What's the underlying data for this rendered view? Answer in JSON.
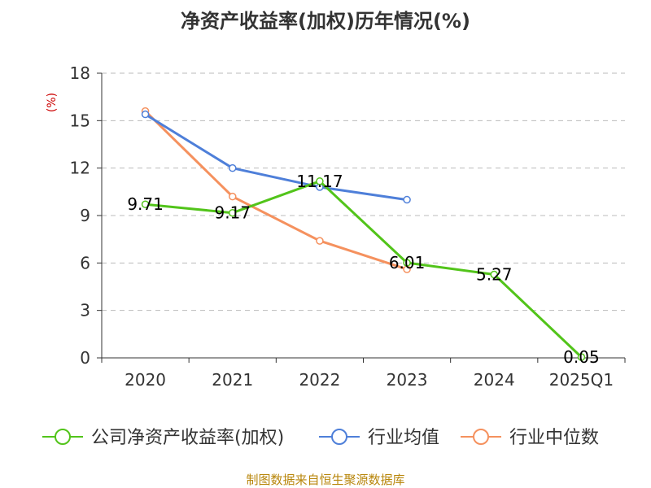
{
  "chart_data": {
    "type": "line",
    "title": "净资产收益率(加权)历年情况(%)",
    "ylabel": "(%)",
    "xlabel": "",
    "categories": [
      "2020",
      "2021",
      "2022",
      "2023",
      "2024",
      "2025Q1"
    ],
    "ylim": [
      0,
      18
    ],
    "yticks": [
      0,
      3,
      6,
      9,
      12,
      15,
      18
    ],
    "grid": true,
    "legend_position": "bottom",
    "series": [
      {
        "name": "公司净资产收益率(加权)",
        "color": "#52c41a",
        "values": [
          9.71,
          9.17,
          11.17,
          6.01,
          5.27,
          0.05
        ],
        "data_labels": [
          "9.71",
          "9.17",
          "11.17",
          "6.01",
          "5.27",
          "0.05"
        ]
      },
      {
        "name": "行业均值",
        "color": "#4e7fd9",
        "values": [
          15.4,
          12.0,
          10.8,
          10.0,
          null,
          null
        ]
      },
      {
        "name": "行业中位数",
        "color": "#f5915e",
        "values": [
          15.6,
          10.2,
          7.4,
          5.6,
          null,
          null
        ]
      }
    ]
  },
  "source": "制图数据来自恒生聚源数据库",
  "colors": {
    "ylabel": "#cc0000",
    "source": "#b8860b",
    "grid": "#bbbbbb",
    "axis": "#333333"
  }
}
